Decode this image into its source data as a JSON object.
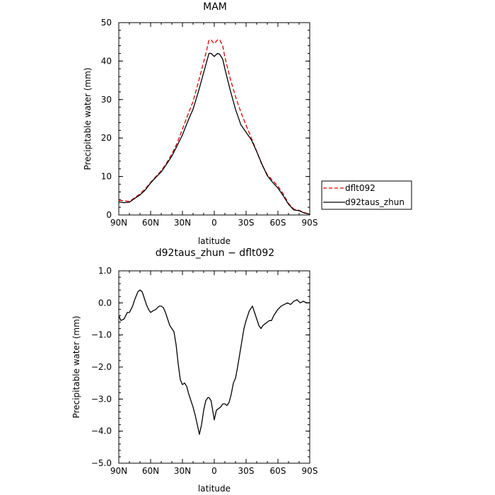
{
  "chart_data": [
    {
      "type": "line",
      "title": "MAM",
      "xlabel": "latitude",
      "ylabel": "Precipitable water (mm)",
      "xlim": [
        90,
        -90
      ],
      "ylim": [
        0,
        50
      ],
      "xticks": [
        90,
        60,
        30,
        0,
        -30,
        -60,
        -90
      ],
      "xtick_labels": [
        "90N",
        "60N",
        "30N",
        "0",
        "30S",
        "60S",
        "90S"
      ],
      "yticks": [
        0,
        10,
        20,
        30,
        40,
        50
      ],
      "ytick_labels": [
        "0",
        "10",
        "20",
        "30",
        "40",
        "50"
      ],
      "legend_position": "right",
      "series": [
        {
          "name": "dflt092",
          "color": "#dd0000",
          "dash": "dashed",
          "x": [
            90,
            85,
            80,
            75,
            70,
            65,
            60,
            55,
            50,
            45,
            40,
            35,
            30,
            25,
            20,
            15,
            10,
            7,
            5,
            3,
            0,
            -3,
            -5,
            -8,
            -10,
            -15,
            -20,
            -25,
            -30,
            -35,
            -40,
            -45,
            -50,
            -55,
            -60,
            -65,
            -70,
            -75,
            -80,
            -85,
            -90
          ],
          "y": [
            3.8,
            3.7,
            3.5,
            4.5,
            5.5,
            6.8,
            8.5,
            10.0,
            11.5,
            13.5,
            15.8,
            18.7,
            22.3,
            26.0,
            29.5,
            34.5,
            39.8,
            43.0,
            45.5,
            45.5,
            44.5,
            45.5,
            45.6,
            44.0,
            41.0,
            35.5,
            30.8,
            26.8,
            23.3,
            20.0,
            16.5,
            13.0,
            10.5,
            9.0,
            7.5,
            5.5,
            3.0,
            1.5,
            1.2,
            0.6,
            0.2
          ]
        },
        {
          "name": "d92taus_zhun",
          "color": "#000000",
          "dash": "solid",
          "x": [
            90,
            85,
            80,
            75,
            70,
            65,
            60,
            55,
            50,
            45,
            40,
            35,
            30,
            25,
            20,
            15,
            10,
            7,
            5,
            3,
            0,
            -3,
            -5,
            -8,
            -10,
            -15,
            -20,
            -25,
            -30,
            -35,
            -40,
            -45,
            -50,
            -55,
            -60,
            -65,
            -70,
            -75,
            -80,
            -85,
            -90
          ],
          "y": [
            3.4,
            3.2,
            3.3,
            4.3,
            5.2,
            6.5,
            8.3,
            9.8,
            11.2,
            13.2,
            15.3,
            18.0,
            20.8,
            24.3,
            27.5,
            32.0,
            37.0,
            40.0,
            42.0,
            42.0,
            41.2,
            42.0,
            41.8,
            40.5,
            38.0,
            32.5,
            27.5,
            23.5,
            21.5,
            19.5,
            16.5,
            13.2,
            10.2,
            8.5,
            7.0,
            5.0,
            2.8,
            1.3,
            1.1,
            0.5,
            0.2
          ]
        }
      ]
    },
    {
      "type": "line",
      "title": "d92taus_zhun − dflt092",
      "xlabel": "latitude",
      "ylabel": "Precipitable water (mm)",
      "xlim": [
        90,
        -90
      ],
      "ylim": [
        -5.0,
        1.0
      ],
      "xticks": [
        90,
        60,
        30,
        0,
        -30,
        -60,
        -90
      ],
      "xtick_labels": [
        "90N",
        "60N",
        "30N",
        "0",
        "30S",
        "60S",
        "90S"
      ],
      "yticks": [
        1.0,
        0.0,
        -1.0,
        -2.0,
        -3.0,
        -4.0,
        -5.0
      ],
      "ytick_labels": [
        "1.0",
        "0.0",
        "−1.0",
        "−2.0",
        "−3.0",
        "−4.0",
        "−5.0"
      ],
      "series": [
        {
          "color": "#000000",
          "dash": "solid",
          "x": [
            90,
            88,
            85,
            82,
            80,
            77,
            75,
            72,
            70,
            68,
            66,
            64,
            62,
            60,
            58,
            55,
            52,
            50,
            48,
            46,
            44,
            42,
            40,
            38,
            36,
            34,
            32,
            30,
            28,
            26,
            24,
            22,
            20,
            18,
            16,
            14,
            12,
            10,
            8,
            6,
            5,
            3,
            1,
            0,
            -2,
            -4,
            -6,
            -8,
            -10,
            -12,
            -14,
            -16,
            -18,
            -20,
            -22,
            -24,
            -26,
            -28,
            -30,
            -33,
            -36,
            -39,
            -42,
            -44,
            -46,
            -48,
            -50,
            -52,
            -54,
            -56,
            -58,
            -60,
            -63,
            -66,
            -69,
            -72,
            -75,
            -78,
            -81,
            -84,
            -87,
            -90
          ],
          "y": [
            -0.4,
            -0.55,
            -0.5,
            -0.3,
            -0.3,
            -0.1,
            0.1,
            0.35,
            0.4,
            0.35,
            0.15,
            -0.05,
            -0.2,
            -0.3,
            -0.25,
            -0.2,
            -0.1,
            -0.1,
            -0.15,
            -0.3,
            -0.5,
            -0.7,
            -0.8,
            -0.9,
            -1.3,
            -1.9,
            -2.4,
            -2.55,
            -2.5,
            -2.6,
            -2.85,
            -3.05,
            -3.25,
            -3.5,
            -3.8,
            -4.1,
            -3.8,
            -3.35,
            -3.05,
            -2.95,
            -2.95,
            -3.05,
            -3.45,
            -3.65,
            -3.35,
            -3.3,
            -3.25,
            -3.15,
            -3.15,
            -3.2,
            -3.1,
            -2.85,
            -2.5,
            -2.35,
            -2.0,
            -1.6,
            -1.2,
            -0.8,
            -0.55,
            -0.25,
            -0.1,
            -0.4,
            -0.7,
            -0.8,
            -0.7,
            -0.65,
            -0.6,
            -0.55,
            -0.55,
            -0.4,
            -0.3,
            -0.2,
            -0.1,
            -0.05,
            0.0,
            -0.05,
            0.05,
            0.1,
            0.0,
            0.05,
            0.0,
            0.0
          ]
        }
      ]
    }
  ]
}
